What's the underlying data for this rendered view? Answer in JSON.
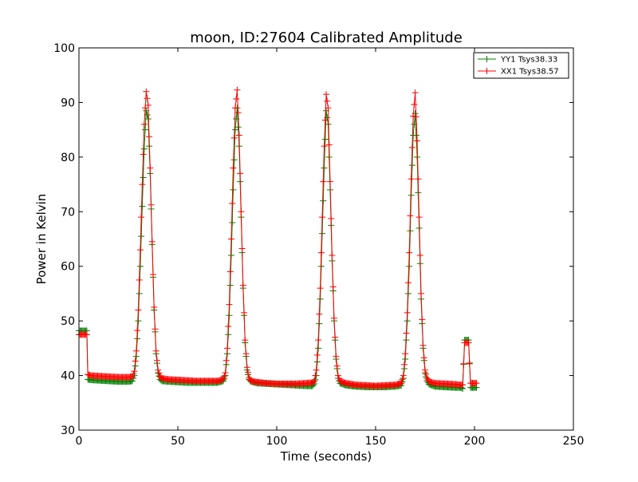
{
  "chart_data": {
    "type": "line",
    "title": "moon, ID:27604 Calibrated Amplitude",
    "xlabel": "Time (seconds)",
    "ylabel": "Power in Kelvin",
    "xlim": [
      0,
      250
    ],
    "ylim": [
      30,
      100
    ],
    "xticks": [
      0,
      50,
      100,
      150,
      200,
      250
    ],
    "yticks": [
      30,
      40,
      50,
      60,
      70,
      80,
      90,
      100
    ],
    "grid": false,
    "legend_position": "top-right",
    "marker": "+",
    "series": [
      {
        "name": "YY1 Tsys38.33",
        "color": "#008000",
        "x": [
          0,
          2,
          4,
          4.5,
          6,
          10,
          15,
          20,
          25,
          27,
          28,
          29,
          30,
          31,
          32,
          33,
          34,
          35,
          36,
          37,
          38,
          39,
          40,
          41,
          42,
          45,
          50,
          55,
          60,
          65,
          70,
          73,
          74,
          75,
          76,
          77,
          78,
          79,
          80,
          81,
          82,
          83,
          84,
          85,
          86,
          87,
          90,
          95,
          100,
          105,
          110,
          115,
          118,
          119,
          120,
          121,
          122,
          123,
          124,
          125,
          126,
          127,
          128,
          129,
          130,
          131,
          132,
          135,
          140,
          145,
          150,
          155,
          160,
          163,
          164,
          165,
          166,
          167,
          168,
          169,
          170,
          171,
          172,
          173,
          174,
          175,
          176,
          177,
          180,
          185,
          190,
          193,
          194,
          195,
          196,
          197,
          198,
          200,
          201
        ],
        "values": [
          48.2,
          48.2,
          48.2,
          39.3,
          39.2,
          39.1,
          39.0,
          38.9,
          38.9,
          39.0,
          40.0,
          43.5,
          50.0,
          60.0,
          71.0,
          81.5,
          88.5,
          87.0,
          77.0,
          64.0,
          52.0,
          44.0,
          40.5,
          39.3,
          39.0,
          38.9,
          38.8,
          38.7,
          38.7,
          38.7,
          38.7,
          39.0,
          40.0,
          44.0,
          51.0,
          62.0,
          74.0,
          85.0,
          89.0,
          82.0,
          69.0,
          56.0,
          46.0,
          41.0,
          39.3,
          38.9,
          38.6,
          38.5,
          38.4,
          38.3,
          38.2,
          38.1,
          38.1,
          38.5,
          40.0,
          45.0,
          54.0,
          66.0,
          78.0,
          88.5,
          86.0,
          74.0,
          61.0,
          50.0,
          43.0,
          39.5,
          38.6,
          38.2,
          38.0,
          37.9,
          37.9,
          37.9,
          38.0,
          38.2,
          39.5,
          43.0,
          50.0,
          60.0,
          73.0,
          84.0,
          88.0,
          80.0,
          67.0,
          54.0,
          45.0,
          40.5,
          39.0,
          38.4,
          38.0,
          37.9,
          37.8,
          37.8,
          37.6,
          46.5,
          46.5,
          46.5,
          37.8,
          37.8,
          37.8
        ]
      },
      {
        "name": "XX1 Tsys38.57",
        "color": "#ff0000",
        "x": [
          0,
          2,
          4,
          4.5,
          6,
          10,
          15,
          20,
          25,
          27,
          28,
          29,
          30,
          31,
          32,
          33,
          34,
          35,
          36,
          37,
          38,
          39,
          40,
          41,
          42,
          45,
          50,
          55,
          60,
          65,
          70,
          73,
          74,
          75,
          76,
          77,
          78,
          79,
          80,
          81,
          82,
          83,
          84,
          85,
          86,
          87,
          90,
          95,
          100,
          105,
          110,
          115,
          118,
          119,
          120,
          121,
          122,
          123,
          124,
          125,
          126,
          127,
          128,
          129,
          130,
          131,
          132,
          135,
          140,
          145,
          150,
          155,
          160,
          163,
          164,
          165,
          166,
          167,
          168,
          169,
          170,
          171,
          172,
          173,
          174,
          175,
          176,
          177,
          180,
          185,
          190,
          193,
          194,
          195,
          196,
          197,
          198,
          200,
          201
        ],
        "values": [
          47.5,
          47.5,
          47.5,
          40.2,
          40.0,
          39.9,
          39.8,
          39.7,
          39.7,
          39.8,
          40.8,
          44.5,
          52.0,
          63.0,
          75.0,
          86.0,
          92.0,
          89.5,
          78.0,
          64.5,
          52.5,
          44.5,
          41.0,
          39.8,
          39.5,
          39.3,
          39.2,
          39.1,
          39.0,
          39.0,
          39.0,
          39.3,
          40.5,
          45.0,
          53.0,
          65.0,
          78.0,
          89.0,
          92.3,
          84.0,
          70.0,
          56.5,
          46.5,
          41.5,
          39.6,
          39.0,
          38.8,
          38.6,
          38.5,
          38.5,
          38.5,
          38.6,
          38.7,
          39.0,
          41.0,
          46.5,
          56.0,
          69.0,
          82.0,
          91.5,
          89.0,
          75.5,
          62.0,
          50.5,
          43.5,
          40.0,
          39.0,
          38.6,
          38.3,
          38.2,
          38.1,
          38.2,
          38.3,
          38.6,
          40.0,
          44.0,
          51.5,
          62.5,
          76.0,
          87.5,
          91.8,
          83.0,
          69.0,
          55.0,
          45.5,
          41.0,
          39.5,
          38.9,
          38.6,
          38.5,
          38.4,
          38.3,
          38.3,
          46.0,
          46.0,
          46.0,
          38.6,
          38.6,
          38.6
        ]
      }
    ]
  }
}
